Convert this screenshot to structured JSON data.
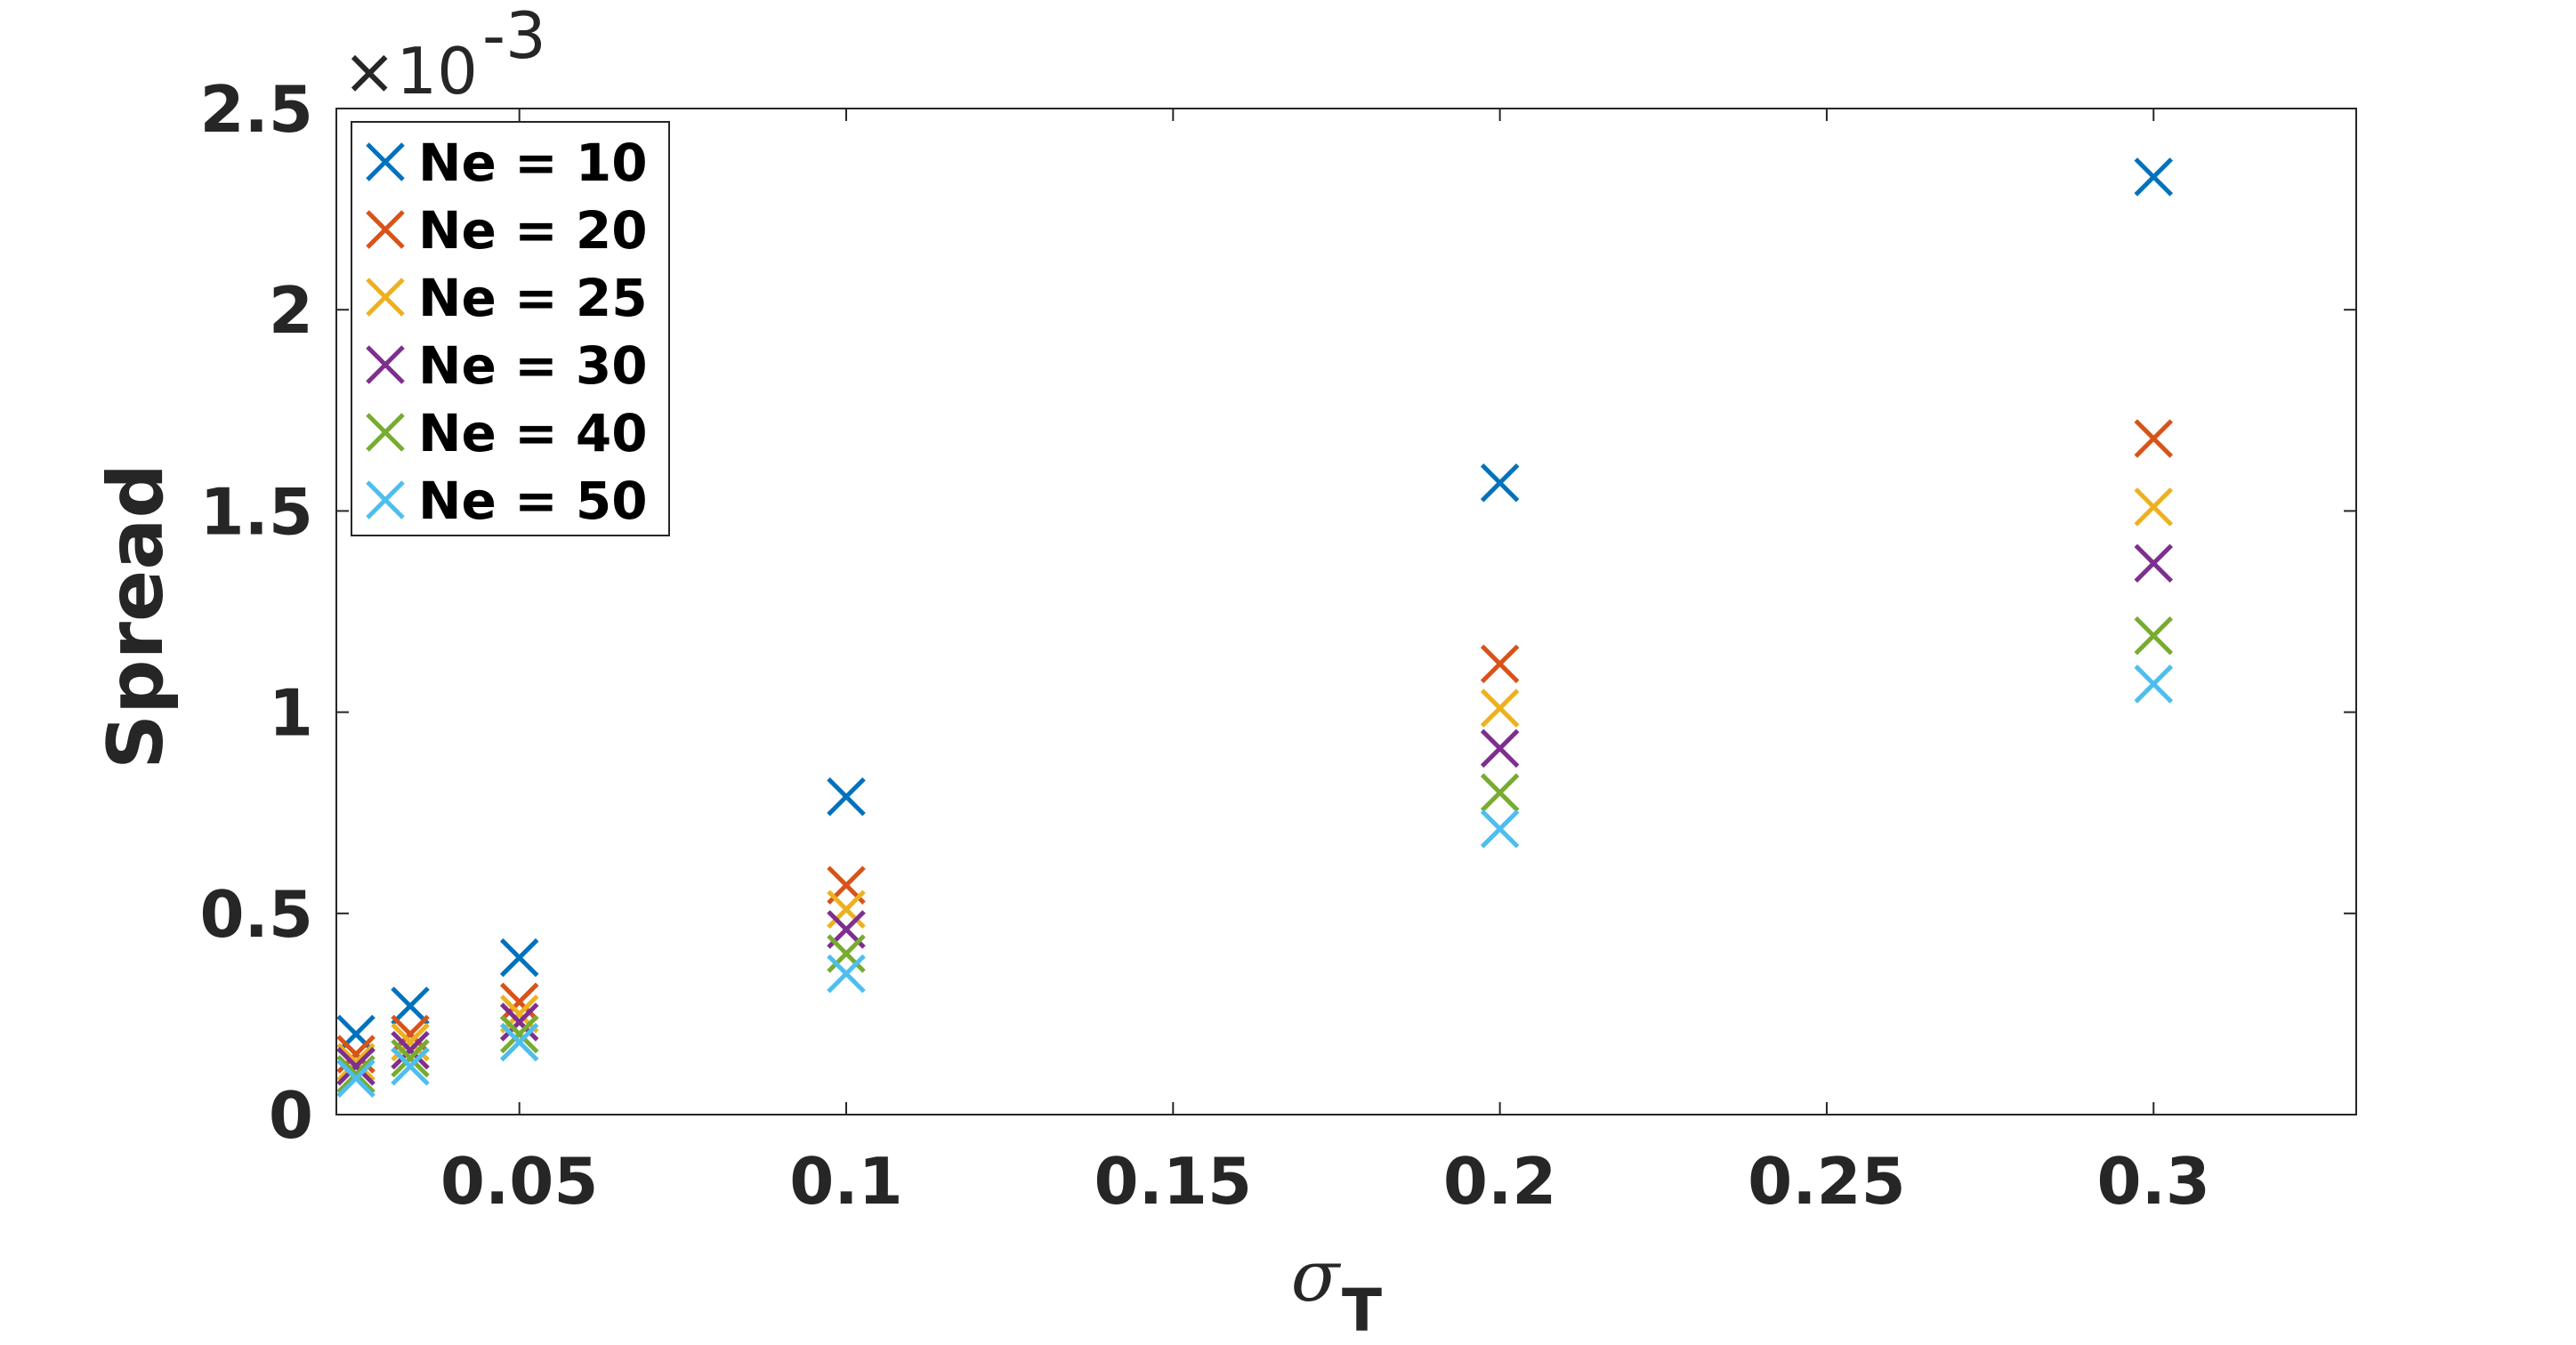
{
  "chart_data": {
    "type": "scatter",
    "marker": "x",
    "xlabel": "σ",
    "xlabel_subscript": "T",
    "ylabel": "Spread",
    "y_exponent_label": "×10",
    "y_exponent_power": "-3",
    "xlim": [
      0.022,
      0.331
    ],
    "ylim": [
      0,
      2.5
    ],
    "xticks": [
      0.05,
      0.1,
      0.15,
      0.2,
      0.25,
      0.3
    ],
    "xtick_labels": [
      "0.05",
      "0.1",
      "0.15",
      "0.2",
      "0.25",
      "0.3"
    ],
    "yticks": [
      0,
      0.5,
      1,
      1.5,
      2,
      2.5
    ],
    "ytick_labels": [
      "0",
      "0.5",
      "1",
      "1.5",
      "2",
      "2.5"
    ],
    "grid": false,
    "legend_position": "top-left",
    "x": [
      0.025,
      0.0333,
      0.05,
      0.1,
      0.2,
      0.3
    ],
    "series": [
      {
        "name": "Ne = 10",
        "color": "#0072BD",
        "values": [
          0.2,
          0.27,
          0.39,
          0.79,
          1.57,
          2.33
        ]
      },
      {
        "name": "Ne = 20",
        "color": "#D95319",
        "values": [
          0.15,
          0.2,
          0.28,
          0.57,
          1.12,
          1.68
        ]
      },
      {
        "name": "Ne = 25",
        "color": "#EDB120",
        "values": [
          0.13,
          0.18,
          0.25,
          0.51,
          1.01,
          1.51
        ]
      },
      {
        "name": "Ne = 30",
        "color": "#7E2F8E",
        "values": [
          0.12,
          0.16,
          0.23,
          0.46,
          0.91,
          1.37
        ]
      },
      {
        "name": "Ne = 40",
        "color": "#77AC30",
        "values": [
          0.1,
          0.14,
          0.2,
          0.4,
          0.8,
          1.19
        ]
      },
      {
        "name": "Ne = 50",
        "color": "#4DBEEE",
        "values": [
          0.09,
          0.12,
          0.18,
          0.35,
          0.71,
          1.07
        ]
      }
    ]
  }
}
